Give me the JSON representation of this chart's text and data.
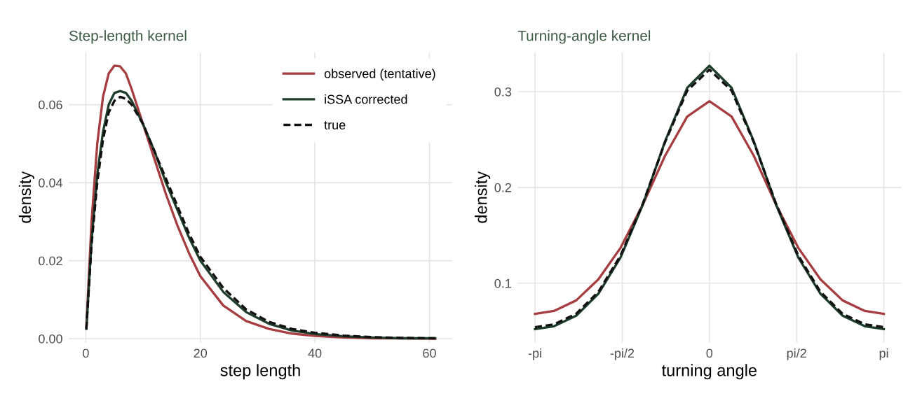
{
  "chart_data": [
    {
      "type": "line",
      "title": "Step-length kernel",
      "xlabel": "step length",
      "ylabel": "density",
      "x": [
        0.1,
        1,
        2,
        3,
        4,
        5,
        6,
        7,
        8,
        10,
        12,
        14,
        16,
        18,
        20,
        24,
        28,
        32,
        36,
        40,
        45,
        50,
        55,
        61
      ],
      "xlim": [
        -3,
        64
      ],
      "xticks": [
        0,
        20,
        40,
        60
      ],
      "ylim": [
        -0.001,
        0.0734
      ],
      "yticks": [
        {
          "value": 0,
          "label": "0.00"
        },
        {
          "value": 0.02,
          "label": "0.02"
        },
        {
          "value": 0.04,
          "label": "0.04"
        },
        {
          "value": 0.06,
          "label": "0.06"
        }
      ],
      "grid": true,
      "legend": "top right",
      "series": [
        {
          "name": "observed (tentative)",
          "color": "#a63d40",
          "line_style": "solid",
          "values": [
            0.003,
            0.03,
            0.05,
            0.062,
            0.068,
            0.07,
            0.0698,
            0.068,
            0.064,
            0.055,
            0.046,
            0.037,
            0.029,
            0.022,
            0.016,
            0.0085,
            0.0045,
            0.0025,
            0.0013,
            0.0007,
            0.0003,
            0.0001,
            0.0001,
            0
          ]
        },
        {
          "name": "iSSA corrected",
          "color": "#1e3d2a",
          "line_style": "solid",
          "values": [
            0.0025,
            0.025,
            0.042,
            0.053,
            0.06,
            0.063,
            0.0635,
            0.063,
            0.061,
            0.055,
            0.048,
            0.04,
            0.033,
            0.026,
            0.02,
            0.012,
            0.0068,
            0.0038,
            0.0021,
            0.0012,
            0.0006,
            0.0003,
            0.0001,
            0.0001
          ]
        },
        {
          "name": "true",
          "color": "#111111",
          "line_style": "dashed",
          "values": [
            0.0025,
            0.024,
            0.04,
            0.051,
            0.058,
            0.061,
            0.062,
            0.0615,
            0.06,
            0.055,
            0.048,
            0.041,
            0.034,
            0.027,
            0.021,
            0.013,
            0.0075,
            0.0043,
            0.0025,
            0.0015,
            0.0008,
            0.0004,
            0.0002,
            0.0001
          ]
        }
      ]
    },
    {
      "type": "line",
      "title": "Turning-angle kernel",
      "xlabel": "turning angle",
      "ylabel": "density",
      "x": [
        -3.1416,
        -2.8,
        -2.4,
        -2.0,
        -1.6,
        -1.2,
        -0.8,
        -0.4,
        0,
        0.4,
        0.8,
        1.2,
        1.6,
        2.0,
        2.4,
        2.8,
        3.1416
      ],
      "xlim": [
        -3.456,
        3.456
      ],
      "xticks": [
        {
          "value": -3.1416,
          "label": "-pi"
        },
        {
          "value": -1.5708,
          "label": "-pi/2"
        },
        {
          "value": 0,
          "label": "0"
        },
        {
          "value": 1.5708,
          "label": "pi/2"
        },
        {
          "value": 3.1416,
          "label": "pi"
        }
      ],
      "ylim": [
        0.038,
        0.341
      ],
      "yticks": [
        0.1,
        0.2,
        0.3
      ],
      "grid": true,
      "series": [
        {
          "color": "#a63d40",
          "line_style": "solid",
          "values": [
            0.068,
            0.071,
            0.082,
            0.104,
            0.137,
            0.182,
            0.233,
            0.274,
            0.29,
            0.274,
            0.233,
            0.182,
            0.137,
            0.104,
            0.082,
            0.071,
            0.068
          ]
        },
        {
          "color": "#1e3d2a",
          "line_style": "solid",
          "values": [
            0.052,
            0.055,
            0.066,
            0.089,
            0.127,
            0.182,
            0.248,
            0.304,
            0.327,
            0.304,
            0.248,
            0.182,
            0.127,
            0.089,
            0.066,
            0.055,
            0.052
          ]
        },
        {
          "color": "#111111",
          "line_style": "dashed",
          "values": [
            0.054,
            0.057,
            0.068,
            0.091,
            0.129,
            0.183,
            0.247,
            0.301,
            0.323,
            0.301,
            0.247,
            0.183,
            0.129,
            0.091,
            0.068,
            0.057,
            0.054
          ]
        }
      ]
    }
  ]
}
